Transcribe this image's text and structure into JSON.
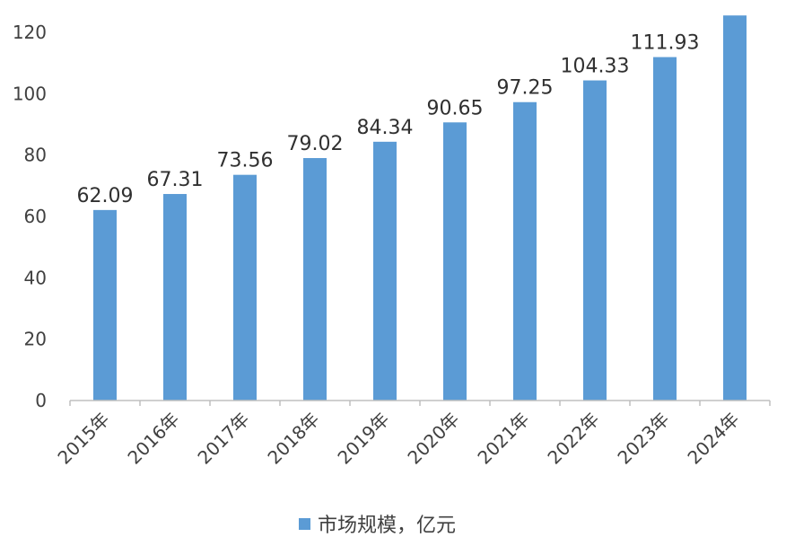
{
  "chart_data": {
    "type": "bar",
    "categories": [
      "2015年",
      "2016年",
      "2017年",
      "2018年",
      "2019年",
      "2020年",
      "2021年",
      "2022年",
      "2023年",
      "2024年"
    ],
    "series": [
      {
        "name": "市场规模，亿元",
        "values": [
          62.09,
          67.31,
          73.56,
          79.02,
          84.34,
          90.65,
          97.25,
          104.33,
          111.93,
          125.5
        ],
        "labels": [
          "62.09",
          "67.31",
          "73.56",
          "79.02",
          "84.34",
          "90.65",
          "97.25",
          "104.33",
          "111.93",
          ""
        ]
      }
    ],
    "y_ticks": [
      "0",
      "20",
      "40",
      "60",
      "80",
      "100",
      "120"
    ],
    "ylim": [
      0,
      120
    ],
    "grid": false,
    "legend_position": "bottom-center",
    "colors": {
      "bar": "#5b9bd5",
      "axis": "#bfbfbf"
    }
  }
}
